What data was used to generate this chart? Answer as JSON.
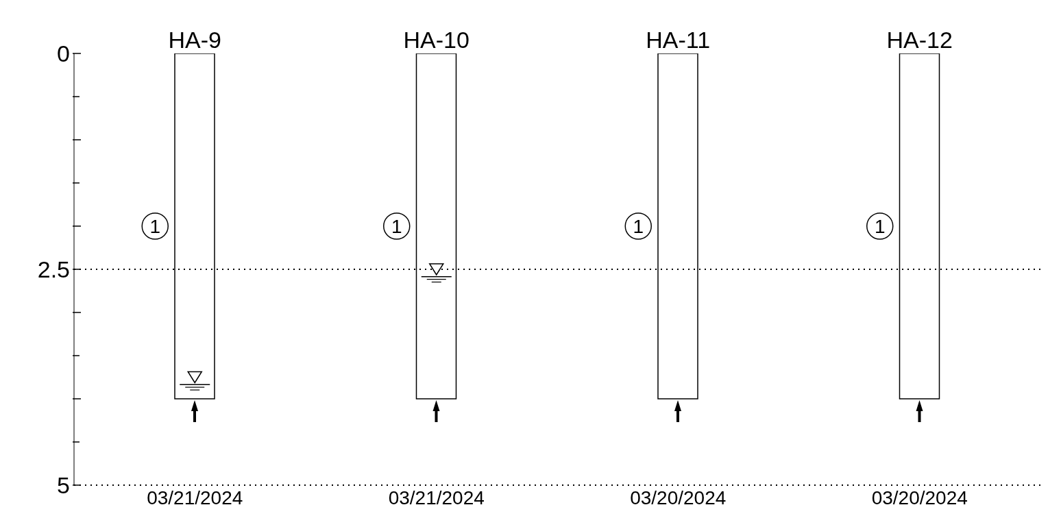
{
  "chart_data": {
    "type": "bar",
    "categories": [
      "HA-9",
      "HA-10",
      "HA-11",
      "HA-12"
    ],
    "series": [
      {
        "color": "#ffffff",
        "values": [
          4,
          4,
          4,
          4
        ]
      },
      {
        "type": "scatter",
        "color": "#000000",
        "marker": "triangle",
        "x": [
          "HA-9",
          "HA-10"
        ],
        "values": [
          3.75,
          2.5
        ]
      }
    ],
    "ylim": [
      5,
      0
    ],
    "yticks": [
      0,
      {
        "value": 0.5,
        "label": null
      },
      {
        "value": 1,
        "label": null
      },
      {
        "value": 1.5,
        "label": null
      },
      {
        "value": 2,
        "label": null
      },
      2.5,
      {
        "value": 3,
        "label": null
      },
      {
        "value": 3.5,
        "label": null
      },
      {
        "value": 4,
        "label": null
      },
      {
        "value": 4.5,
        "label": null
      },
      5
    ],
    "ref_lines": [
      {
        "axis": "y",
        "value": 2.5,
        "line_style": "dotted"
      }
    ],
    "annotations": [
      "1",
      "1",
      "1",
      "1",
      "03/21/2024",
      "03/21/2024",
      "03/20/2024",
      "03/20/2024"
    ],
    "grid": false,
    "legend": false
  }
}
